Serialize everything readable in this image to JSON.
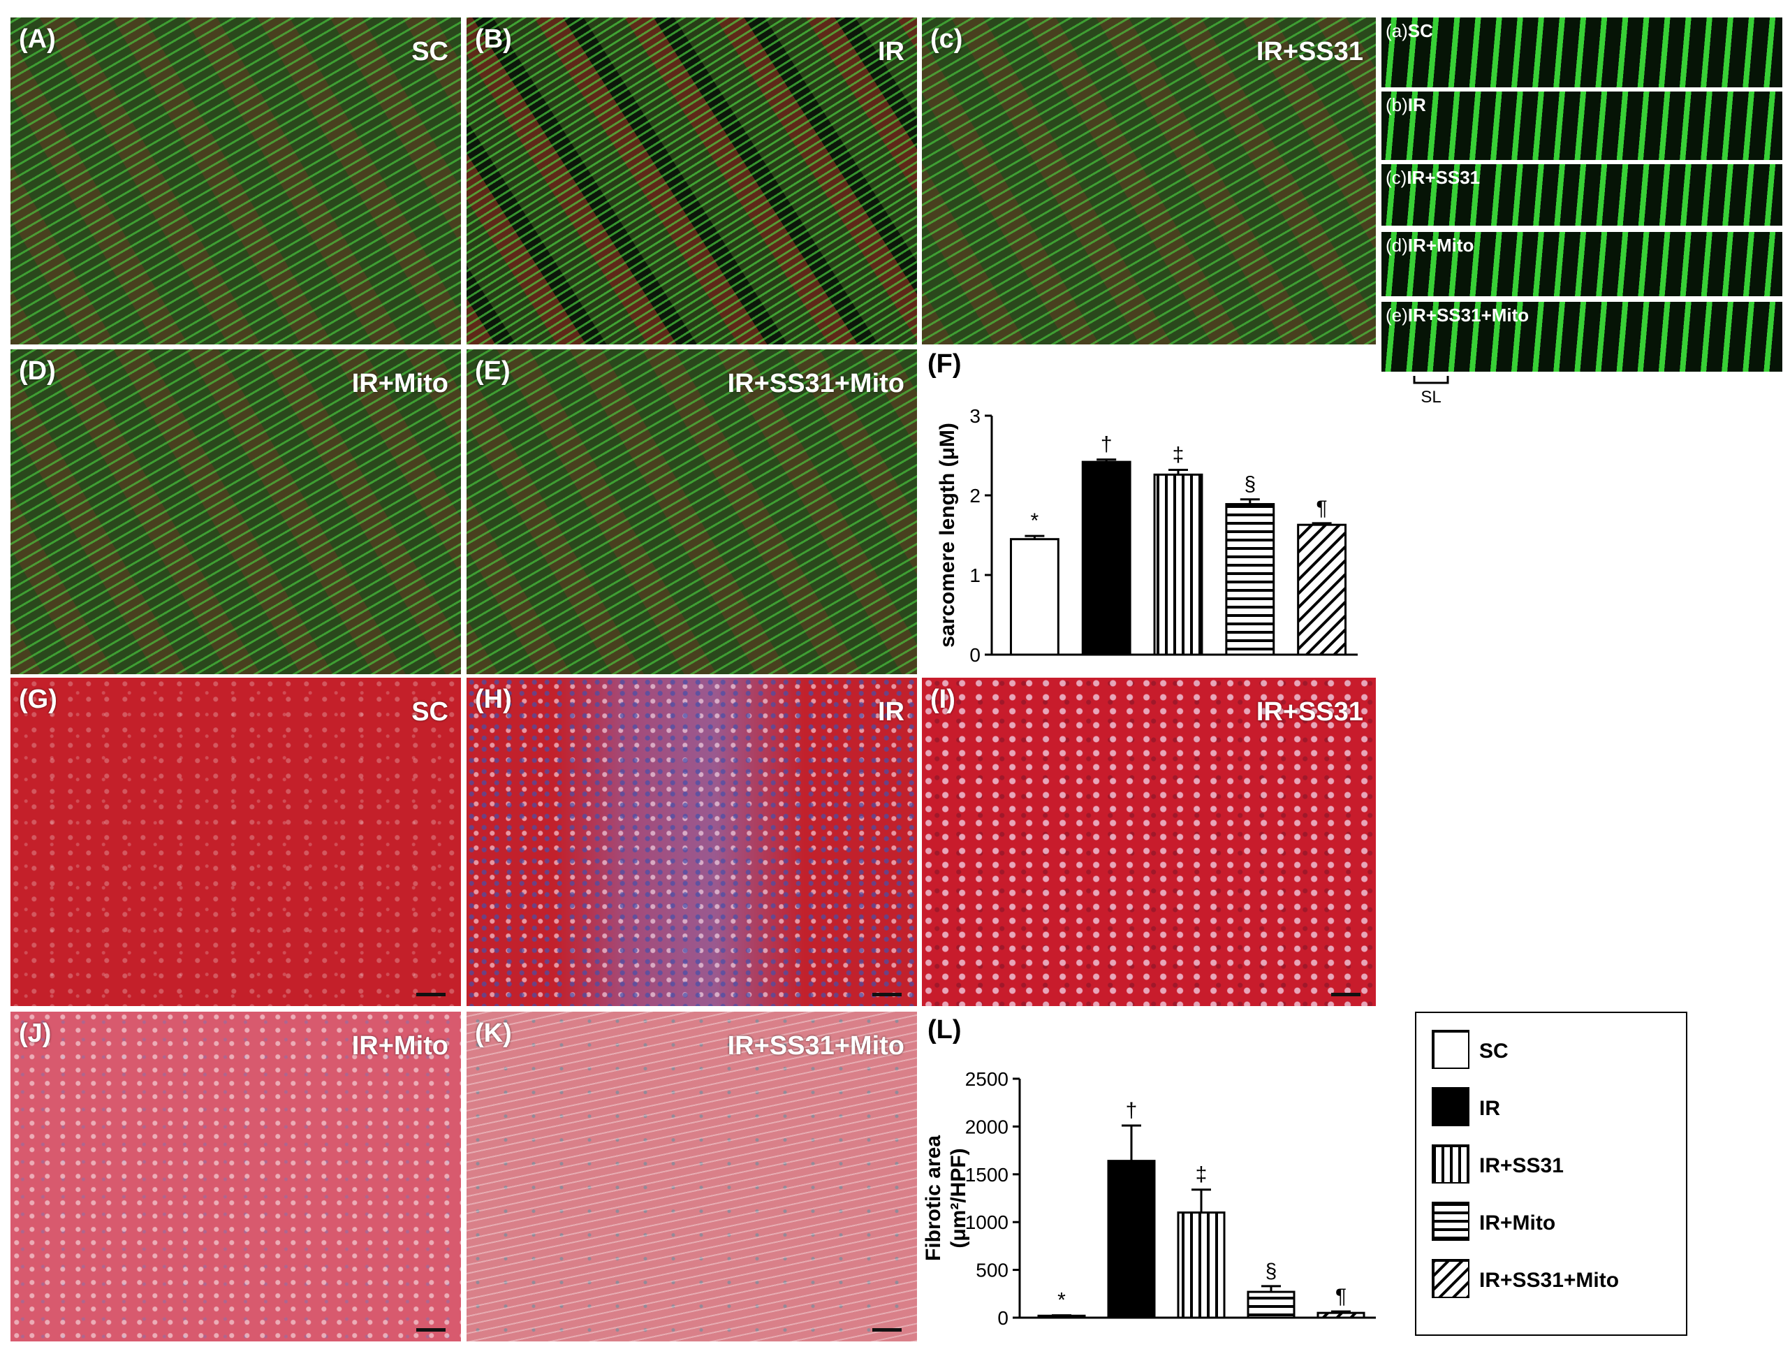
{
  "fluorescence_panels": [
    {
      "label": "(A)",
      "group": "SC"
    },
    {
      "label": "(B)",
      "group": "IR"
    },
    {
      "label": "(c)",
      "group": "IR+SS31"
    },
    {
      "label": "(D)",
      "group": "IR+Mito"
    },
    {
      "label": "(E)",
      "group": "IR+SS31+Mito"
    }
  ],
  "inset_strips": [
    {
      "letter": "(a)",
      "group": "SC"
    },
    {
      "letter": "(b)",
      "group": "IR"
    },
    {
      "letter": "(c)",
      "group": "IR+SS31"
    },
    {
      "letter": "(d)",
      "group": "IR+Mito"
    },
    {
      "letter": "(e)",
      "group": "IR+SS31+Mito"
    }
  ],
  "inset_scale_label": "SL",
  "trichrome_panels": [
    {
      "label": "(G)",
      "group": "SC"
    },
    {
      "label": "(H)",
      "group": "IR"
    },
    {
      "label": "(I)",
      "group": "IR+SS31"
    },
    {
      "label": "(J)",
      "group": "IR+Mito"
    },
    {
      "label": "(K)",
      "group": "IR+SS31+Mito"
    }
  ],
  "chart_data": [
    {
      "type": "bar",
      "panel_label": "(F)",
      "categories": [
        "SC",
        "IR",
        "IR+SS31",
        "IR+Mito",
        "IR+SS31+Mito"
      ],
      "values": [
        1.45,
        2.42,
        2.26,
        1.89,
        1.63
      ],
      "errors": [
        0.04,
        0.03,
        0.06,
        0.06,
        0.02
      ],
      "significance": [
        "*",
        "†",
        "‡",
        "§",
        "¶"
      ],
      "ylabel": "sarcomere length (μM)",
      "ylim": [
        0,
        3
      ],
      "yticks": [
        "0",
        "1",
        "2",
        "3"
      ]
    },
    {
      "type": "bar",
      "panel_label": "(L)",
      "categories": [
        "SC",
        "IR",
        "IR+SS31",
        "IR+Mito",
        "IR+SS31+Mito"
      ],
      "values": [
        20,
        1640,
        1100,
        270,
        50
      ],
      "errors": [
        5,
        370,
        240,
        60,
        15
      ],
      "significance": [
        "*",
        "†",
        "‡",
        "§",
        "¶"
      ],
      "ylabel_line1": "Fibrotic area",
      "ylabel_line2": "(μm²/HPF)",
      "ylim": [
        0,
        2500
      ],
      "yticks": [
        "0",
        "500",
        "1000",
        "1500",
        "2000",
        "2500"
      ]
    }
  ],
  "legend": [
    {
      "label": "SC",
      "pattern": "open"
    },
    {
      "label": "IR",
      "pattern": "solid"
    },
    {
      "label": "IR+SS31",
      "pattern": "vertical"
    },
    {
      "label": "IR+Mito",
      "pattern": "horizontal"
    },
    {
      "label": "IR+SS31+Mito",
      "pattern": "diagonal"
    }
  ]
}
